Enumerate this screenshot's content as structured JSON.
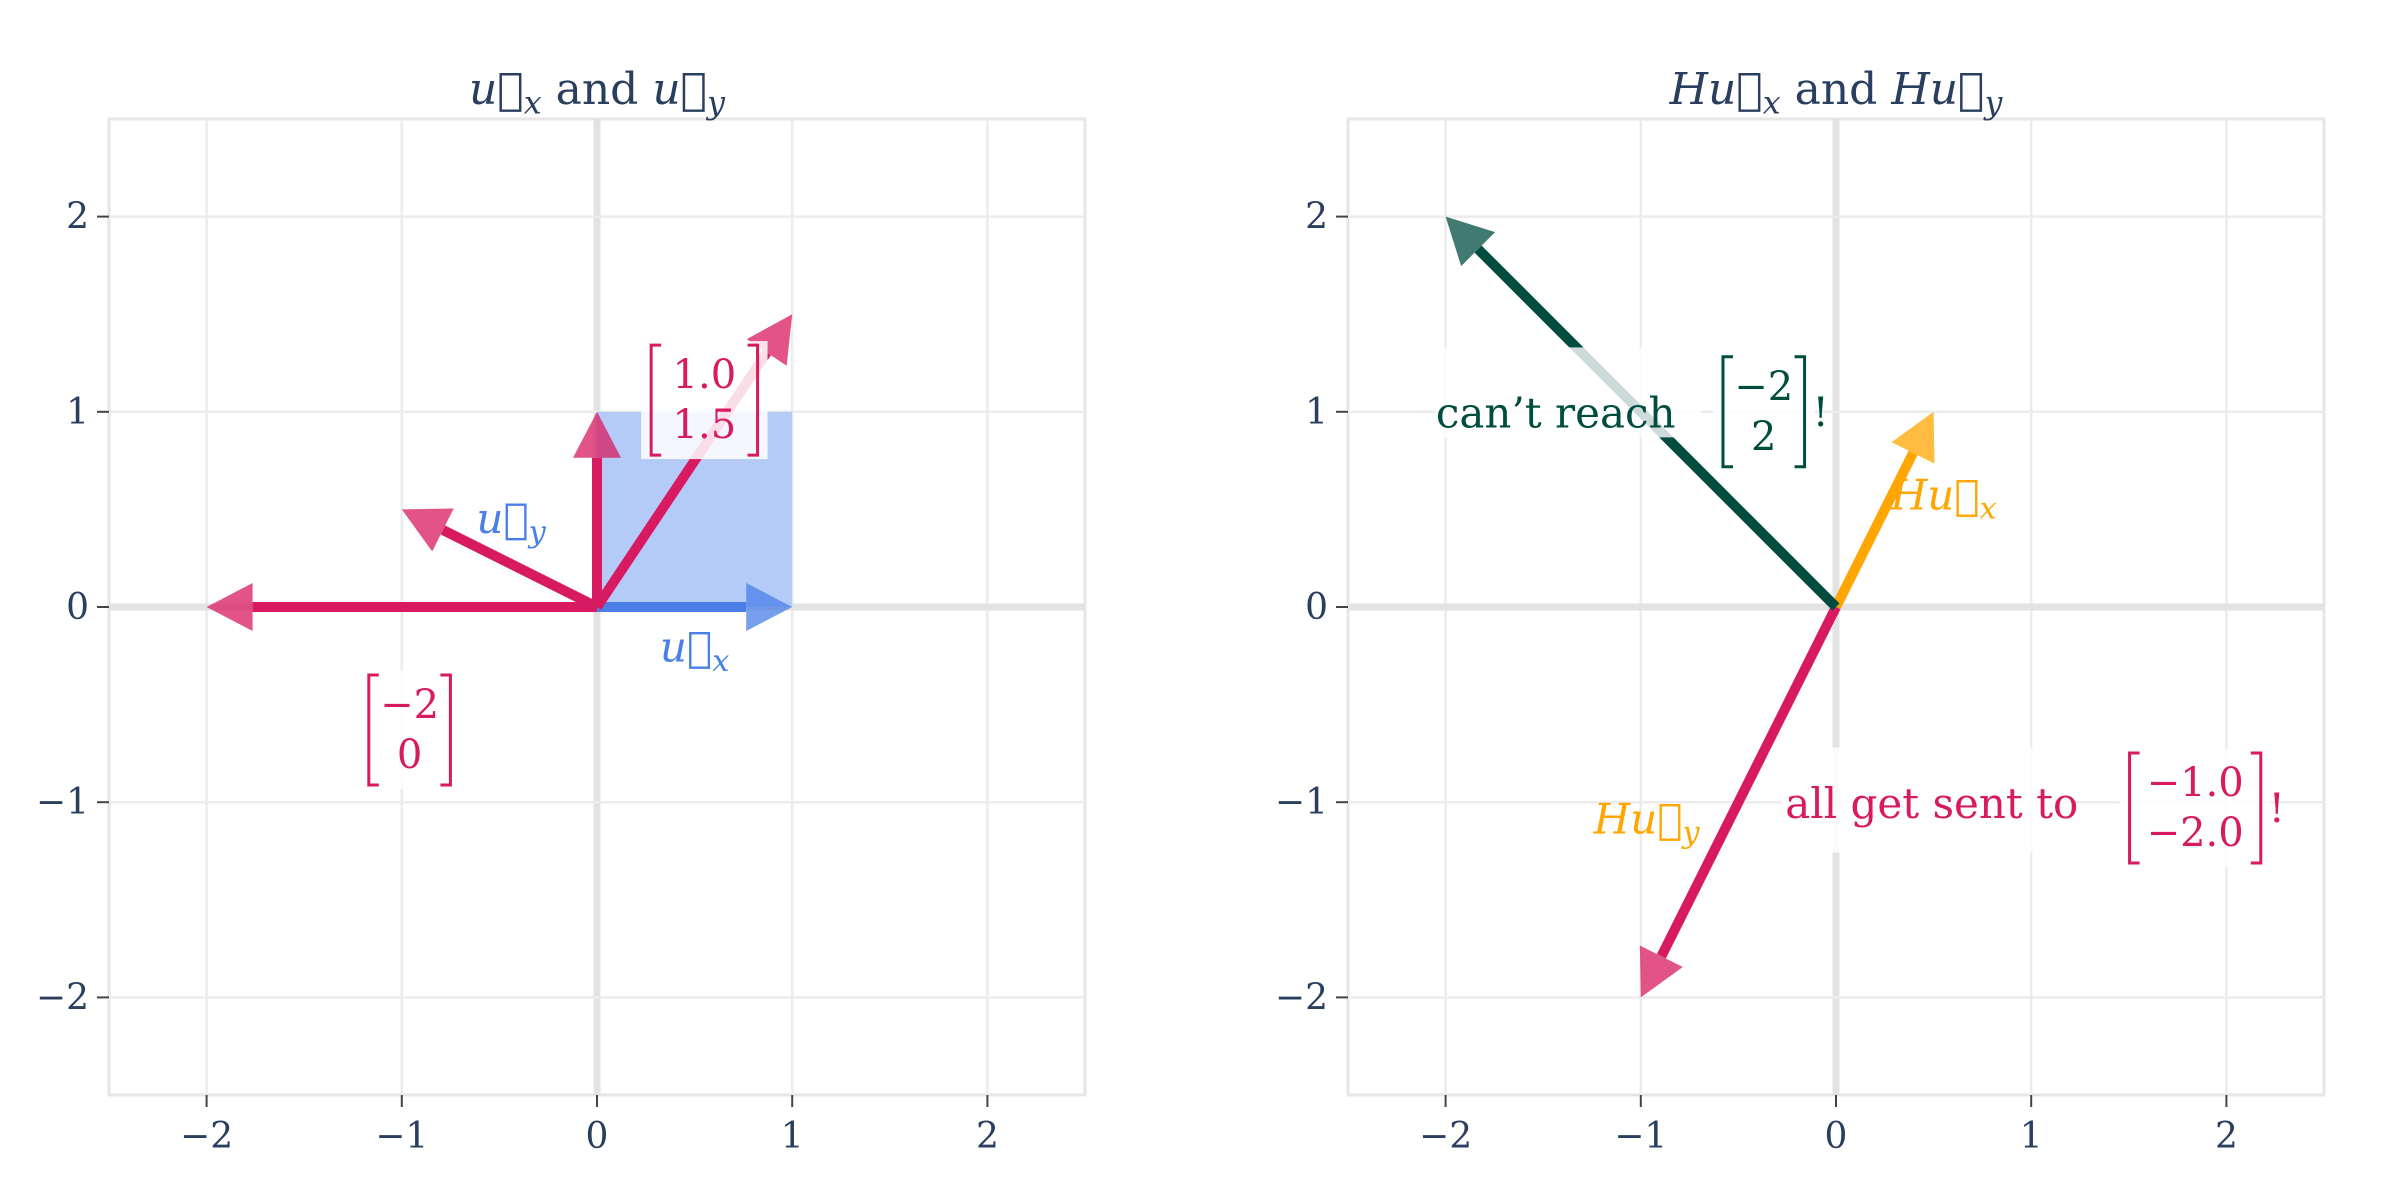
{
  "chart_data": [
    {
      "type": "vector-plot",
      "title": "u⃗x and u⃗y",
      "xlim": [
        -2.5,
        2.5
      ],
      "ylim": [
        -2.5,
        2.5
      ],
      "xticks": [
        -2,
        -1,
        0,
        1,
        2
      ],
      "yticks": [
        -2,
        -1,
        0,
        1,
        2
      ],
      "tick_labels": [
        "−2",
        "−1",
        "0",
        "1",
        "2"
      ],
      "grid": true,
      "colors": {
        "blue": "#4a7fe8",
        "blue_fill": "#b0c8f7",
        "pink": "#d81b60",
        "grid": "#ebebeb",
        "axis_text": "#2a3f5f"
      },
      "unit_square": {
        "x": [
          0,
          1
        ],
        "y": [
          0,
          1
        ]
      },
      "vectors": [
        {
          "name": "u⃗x",
          "from": [
            0,
            0
          ],
          "to": [
            1,
            0
          ],
          "color": "#4a7fe8"
        },
        {
          "name": "u⃗y",
          "from": [
            0,
            0
          ],
          "to": [
            0,
            1
          ],
          "color": "#d81b60"
        },
        {
          "name": "",
          "from": [
            0,
            0
          ],
          "to": [
            1.0,
            1.5
          ],
          "color": "#d81b60"
        },
        {
          "name": "",
          "from": [
            0,
            0
          ],
          "to": [
            -1,
            0.5
          ],
          "color": "#d81b60"
        },
        {
          "name": "",
          "from": [
            0,
            0
          ],
          "to": [
            -2,
            0
          ],
          "color": "#d81b60"
        }
      ],
      "annotations": [
        {
          "text": "u⃗y",
          "color": "#4a7fe8"
        },
        {
          "text": "u⃗x",
          "color": "#4a7fe8"
        },
        {
          "matrix": [
            "1.0",
            "1.5"
          ],
          "color": "#d81b60"
        },
        {
          "matrix": [
            "−2",
            "0"
          ],
          "color": "#d81b60"
        }
      ]
    },
    {
      "type": "vector-plot",
      "title": "Hu⃗x and Hu⃗y",
      "xlim": [
        -2.5,
        2.5
      ],
      "ylim": [
        -2.5,
        2.5
      ],
      "xticks": [
        -2,
        -1,
        0,
        1,
        2
      ],
      "yticks": [
        -2,
        -1,
        0,
        1,
        2
      ],
      "tick_labels": [
        "−2",
        "−1",
        "0",
        "1",
        "2"
      ],
      "grid": true,
      "colors": {
        "orange": "#ffa600",
        "pink": "#d81b60",
        "green": "#004d40",
        "grid": "#ebebeb",
        "axis_text": "#2a3f5f"
      },
      "vectors": [
        {
          "name": "Hu⃗x",
          "from": [
            0,
            0
          ],
          "to": [
            0.5,
            1.0
          ],
          "color": "#ffa600"
        },
        {
          "name": "Hu⃗y",
          "from": [
            0,
            0
          ],
          "to": [
            -1,
            -2
          ],
          "color": "#d81b60"
        },
        {
          "name": "",
          "from": [
            0,
            0
          ],
          "to": [
            -2,
            2
          ],
          "color": "#004d40"
        }
      ],
      "annotations": [
        {
          "text": "can’t reach",
          "matrix": [
            "−2",
            "2"
          ],
          "suffix": "!",
          "color": "#004d40"
        },
        {
          "text": "Hu⃗x",
          "color": "#ffa600"
        },
        {
          "text": "Hu⃗y",
          "color": "#ffa600"
        },
        {
          "text": "all get sent to",
          "matrix": [
            "−1.0",
            "−2.0"
          ],
          "suffix": "!",
          "color": "#d81b60"
        }
      ]
    }
  ]
}
